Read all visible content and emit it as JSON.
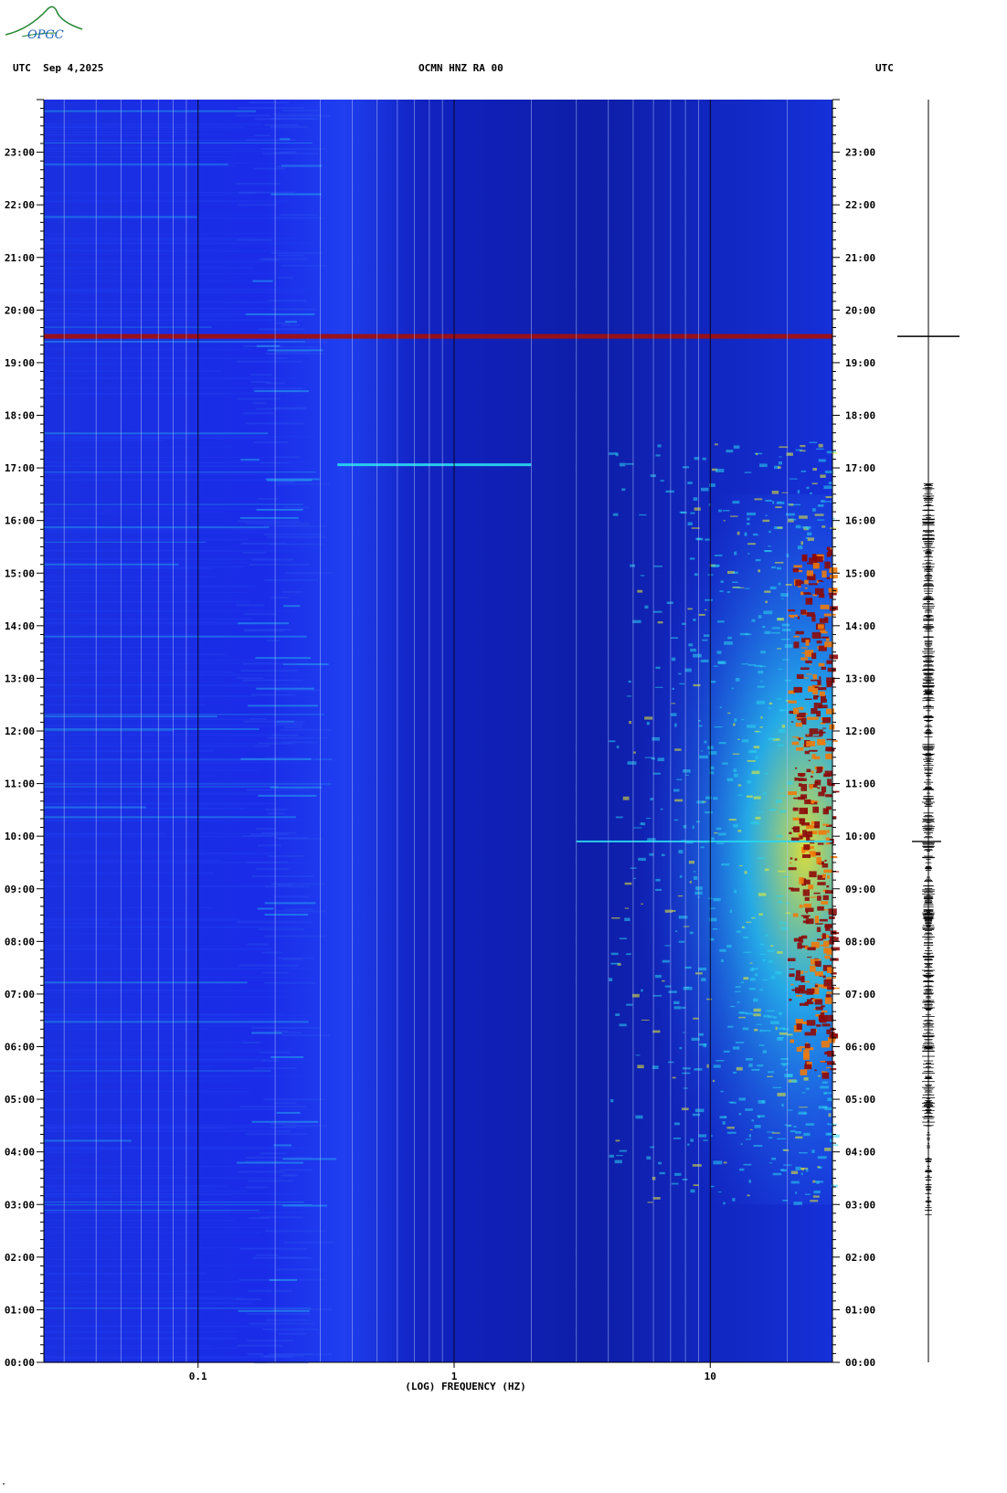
{
  "header": {
    "left": "UTC  Sep 4,2025",
    "center": "OCMN HNZ RA 00",
    "right": "UTC"
  },
  "logo": {
    "text": "OPGC",
    "color": "#2a8a3a"
  },
  "chart_data": {
    "type": "heatmap",
    "title": "OCMN HNZ RA 00",
    "xlabel": "(LOG) FREQUENCY (HZ)",
    "ylabel": "",
    "x_scale": "log",
    "xlim": [
      0.025,
      30
    ],
    "x_tick_labels": [
      {
        "value": 0.1,
        "label": "0.1"
      },
      {
        "value": 1,
        "label": "1"
      },
      {
        "value": 10,
        "label": "10"
      }
    ],
    "y_tick_labels": [
      "00:00",
      "01:00",
      "02:00",
      "03:00",
      "04:00",
      "05:00",
      "06:00",
      "07:00",
      "08:00",
      "09:00",
      "10:00",
      "11:00",
      "12:00",
      "13:00",
      "14:00",
      "15:00",
      "16:00",
      "17:00",
      "18:00",
      "19:00",
      "20:00",
      "21:00",
      "22:00",
      "23:00"
    ],
    "ylim_hours": [
      0,
      24
    ],
    "grid": true,
    "colorscale": [
      "#0a0f8c",
      "#1e3cf0",
      "#2ad4f0",
      "#f0f02a",
      "#f07a0a",
      "#8c0a0a"
    ],
    "events": [
      {
        "hour_utc": 19.5,
        "freq_range_hz": [
          0.025,
          30
        ],
        "level": "max"
      },
      {
        "hour_utc": 17.06,
        "freq_range_hz": [
          0.35,
          2.0
        ],
        "level": "moderate"
      },
      {
        "hour_utc": 9.9,
        "freq_range_hz": [
          3,
          30
        ],
        "level": "high"
      }
    ],
    "high_energy_band": {
      "freq_range_hz": [
        8,
        30
      ],
      "hours_utc": [
        3,
        16
      ],
      "peak_hours_utc": [
        5.5,
        15.5
      ]
    }
  },
  "trace": {
    "color": "#000000"
  },
  "corner_mark": "\""
}
